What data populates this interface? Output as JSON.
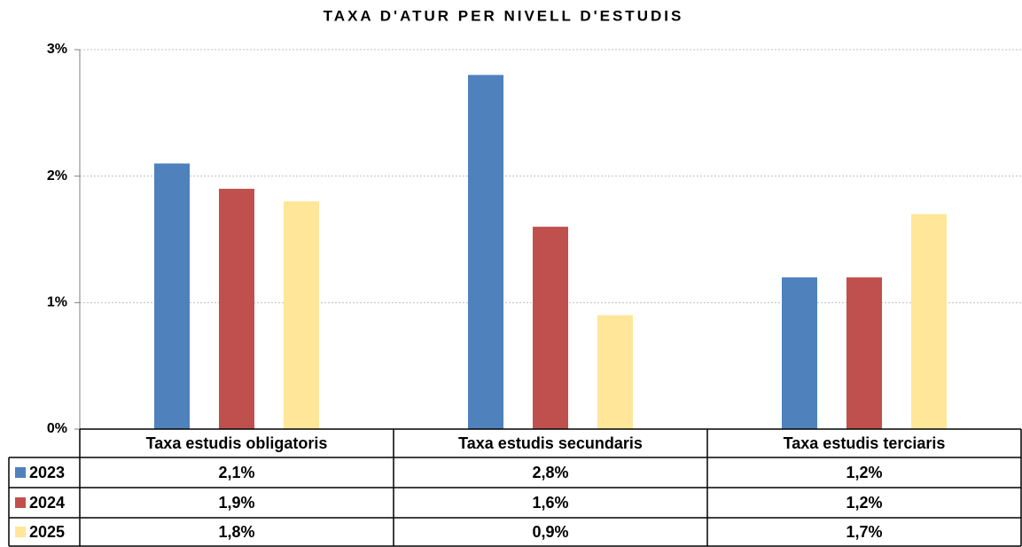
{
  "chart_data": {
    "type": "bar",
    "title": "TAXA D'ATUR PER NIVELL D'ESTUDIS",
    "categories": [
      "Taxa estudis obligatoris",
      "Taxa estudis secundaris",
      "Taxa estudis terciaris"
    ],
    "series": [
      {
        "name": "2023",
        "color": "#4f81bd",
        "values": [
          2.1,
          2.8,
          1.2
        ],
        "value_labels": [
          "2,1%",
          "2,8%",
          "1,2%"
        ]
      },
      {
        "name": "2024",
        "color": "#c0504d",
        "values": [
          1.9,
          1.6,
          1.2
        ],
        "value_labels": [
          "1,9%",
          "1,6%",
          "1,2%"
        ]
      },
      {
        "name": "2025",
        "color": "#ffe699",
        "values": [
          1.8,
          0.9,
          1.7
        ],
        "value_labels": [
          "1,8%",
          "0,9%",
          "1,7%"
        ]
      }
    ],
    "ylim": [
      0,
      3
    ],
    "yticks": [
      {
        "value": 0,
        "label": "0%"
      },
      {
        "value": 1,
        "label": "1%"
      },
      {
        "value": 2,
        "label": "2%"
      },
      {
        "value": 3,
        "label": "3%"
      }
    ],
    "grid": true
  }
}
